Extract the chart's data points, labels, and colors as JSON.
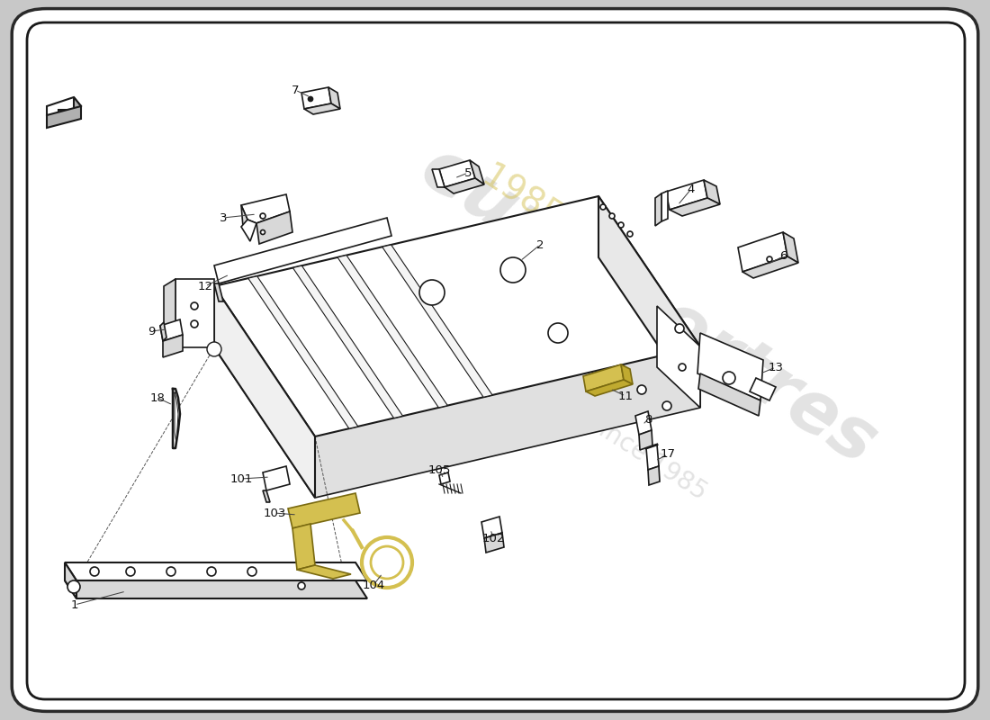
{
  "background_color": "#ffffff",
  "border_color": "#2a2a2a",
  "watermark_color": "#ececec",
  "line_color": "#1a1a1a",
  "line_width": 1.2,
  "highlight_color": "#d4c050",
  "gray_fill": "#b0b0b0",
  "light_gray": "#d8d8d8",
  "figsize": [
    11.0,
    8.0
  ],
  "dpi": 100,
  "xlim": [
    0,
    1100
  ],
  "ylim": [
    0,
    800
  ]
}
